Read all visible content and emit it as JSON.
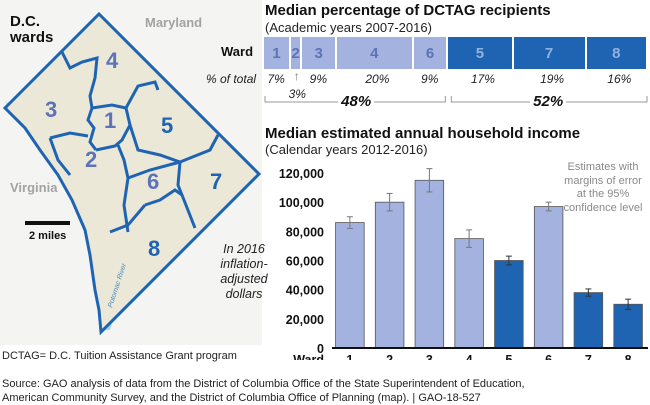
{
  "map": {
    "title_line1": "D.C.",
    "title_line2": "wards",
    "labels": {
      "maryland": "Maryland",
      "virginia": "Virginia",
      "river": "Potomac River"
    },
    "scale_label": "2 miles",
    "ward_numbers": [
      "1",
      "2",
      "3",
      "4",
      "5",
      "6",
      "7",
      "8"
    ],
    "colors": {
      "boundary": "#1f64b2",
      "light_ward_text": "#5d73b8",
      "dark_ward_text": "#1f64b2",
      "water": "#a8d8f0",
      "land": "#ece8d8"
    }
  },
  "top_chart": {
    "title": "Median percentage of DCTAG recipients",
    "subtitle": "(Academic years 2007-2016)",
    "row_label_ward": "Ward",
    "row_label_pct": "% of total",
    "segments": [
      {
        "ward": "1",
        "pct": 7,
        "pct_label": "7%",
        "group": "light"
      },
      {
        "ward": "2",
        "pct": 3,
        "pct_label": "3%",
        "group": "light"
      },
      {
        "ward": "3",
        "pct": 9,
        "pct_label": "9%",
        "group": "light"
      },
      {
        "ward": "4",
        "pct": 20,
        "pct_label": "20%",
        "group": "light"
      },
      {
        "ward": "6",
        "pct": 9,
        "pct_label": "9%",
        "group": "light"
      },
      {
        "ward": "5",
        "pct": 17,
        "pct_label": "17%",
        "group": "dark"
      },
      {
        "ward": "7",
        "pct": 19,
        "pct_label": "19%",
        "group": "dark"
      },
      {
        "ward": "8",
        "pct": 16,
        "pct_label": "16%",
        "group": "dark"
      }
    ],
    "group_totals": {
      "light": "48%",
      "dark": "52%"
    }
  },
  "chart_data": {
    "type": "bar",
    "title": "Median estimated annual household income",
    "subtitle": "(Calendar years 2012-2016)",
    "xlabel": "Ward",
    "ylabel": "",
    "categories": [
      "1",
      "2",
      "3",
      "4",
      "5",
      "6",
      "7",
      "8"
    ],
    "values": [
      86000,
      100000,
      115000,
      75000,
      60000,
      97000,
      38000,
      30000
    ],
    "error_margins": [
      4000,
      6000,
      8000,
      6000,
      3000,
      3000,
      2500,
      3500
    ],
    "groups": [
      "light",
      "light",
      "light",
      "light",
      "dark",
      "light",
      "dark",
      "dark"
    ],
    "ylim": [
      0,
      120000
    ],
    "yticks": [
      0,
      20000,
      40000,
      60000,
      80000,
      100000,
      120000
    ],
    "ytick_labels": [
      "0",
      "20,000",
      "40,000",
      "60,000",
      "80,000",
      "100,000",
      "120,000"
    ],
    "grid": false,
    "colors": {
      "light": "#a3b2df",
      "dark": "#1f64b2"
    },
    "annotation": "Estimates with margins of error at the 95% confidence level",
    "unit_note": "In 2016 inflation-adjusted dollars"
  },
  "footnote": "DCTAG= D.C. Tuition Assistance Grant program",
  "source_line1": "Source: GAO analysis of data from the District of Columbia Office of the State Superintendent of Education,",
  "source_line2": "American Community Survey, and the District of Columbia Office of Planning (map).  |  GAO-18-527"
}
